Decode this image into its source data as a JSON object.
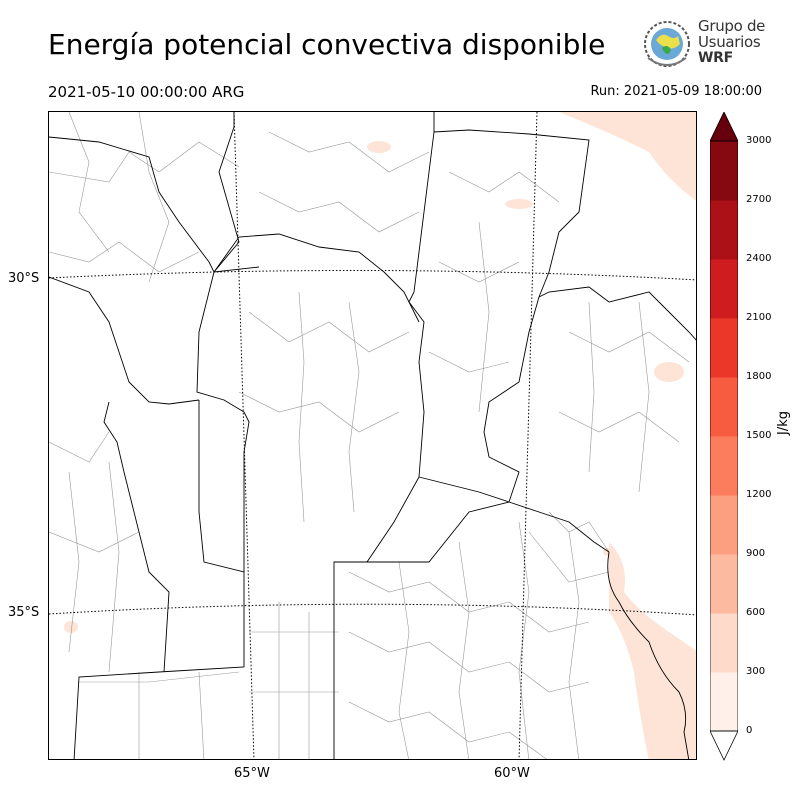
{
  "header": {
    "title": "Energía potencial convectiva disponible",
    "valid_time": "2021-05-10 00:00:00 ARG",
    "run_time": "Run: 2021-05-09 18:00:00"
  },
  "logo": {
    "line1": "Grupo de",
    "line2": "Usuarios",
    "line3": "WRF"
  },
  "map": {
    "lat_labels": [
      "30°S",
      "35°S"
    ],
    "lon_labels": [
      "65°W",
      "60°W"
    ],
    "coast_fill": "#fde4d6",
    "border_color": "#000000",
    "dept_color": "#999999"
  },
  "colorbar": {
    "unit": "J/kg",
    "ticks": [
      "0",
      "300",
      "600",
      "900",
      "1200",
      "1500",
      "1800",
      "2100",
      "2400",
      "2700",
      "3000"
    ],
    "colors": [
      "#fff0ea",
      "#fedacb",
      "#fcbba1",
      "#fc9f81",
      "#fb7d5d",
      "#f75c41",
      "#ea372a",
      "#cf1c1f",
      "#ac1117",
      "#860811"
    ],
    "under_color": "#ffffff",
    "over_color": "#67000d"
  }
}
